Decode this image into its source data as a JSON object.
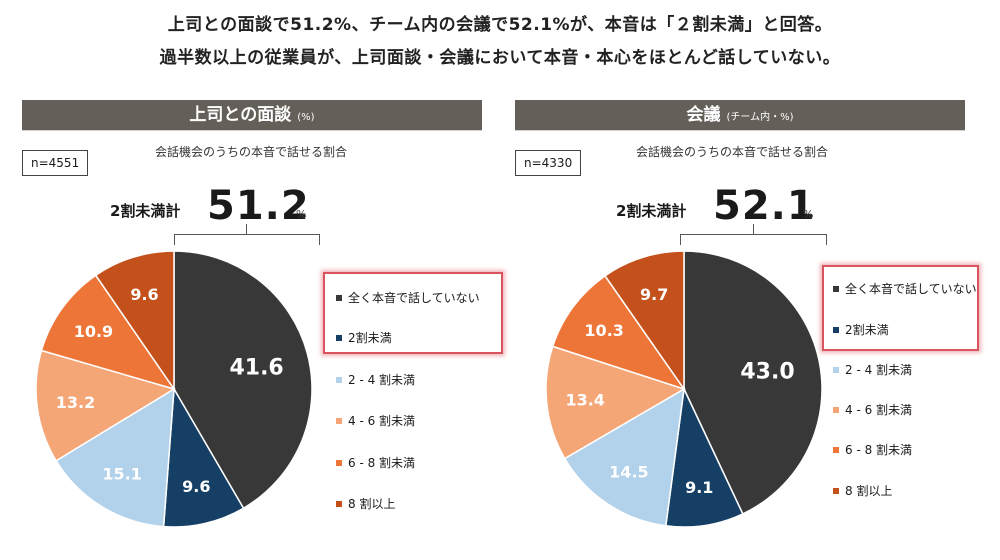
{
  "headline": {
    "line1": "上司との面談で51.2%、チーム内の会議で52.1%が、本音は「２割未満」と回答。",
    "line2": "過半数以上の従業員が、上司面談・会議において本音・本心をほとんど話していない。"
  },
  "panels": [
    {
      "title": "上司との面談",
      "unit": "(%)",
      "n": "n=4551",
      "subtitle": "会話機会のうちの本音で話せる割合",
      "total_label": "2割未満計",
      "total_value": "51.2",
      "total_unit": "%"
    },
    {
      "title": "会議",
      "unit": "(チーム内・%)",
      "n": "n=4330",
      "subtitle": "会話機会のうちの本音で話せる割合",
      "total_label": "2割未満計",
      "total_value": "52.1",
      "total_unit": "%"
    }
  ],
  "legend": [
    {
      "label": "全く本音で話していない",
      "color": "#383838"
    },
    {
      "label": "2割未満",
      "color": "#163f66"
    },
    {
      "label": "2 - 4 割未満",
      "color": "#b2d1ea"
    },
    {
      "label": "4 - 6 割未満",
      "color": "#f4a677"
    },
    {
      "label": "6 - 8 割未満",
      "color": "#ee7538"
    },
    {
      "label": "8 割以上",
      "color": "#c4511c"
    }
  ],
  "chart_data": [
    {
      "type": "pie",
      "title": "上司との面談 (%)",
      "subtitle": "会話機会のうちの本音で話せる割合",
      "n": 4551,
      "categories": [
        "全く本音で話していない",
        "2割未満",
        "2-4割未満",
        "4-6割未満",
        "6-8割未満",
        "8割以上"
      ],
      "values": [
        41.6,
        9.6,
        15.1,
        13.2,
        10.9,
        9.6
      ],
      "colors": [
        "#383838",
        "#163f66",
        "#b2d1ea",
        "#f4a677",
        "#ee7538",
        "#c4511c"
      ],
      "annotation": "2割未満計 51.2%",
      "legend_position": "right",
      "start_angle": "12 o'clock, clockwise"
    },
    {
      "type": "pie",
      "title": "会議 (チーム内・%)",
      "subtitle": "会話機会のうちの本音で話せる割合",
      "n": 4330,
      "categories": [
        "全く本音で話していない",
        "2割未満",
        "2-4割未満",
        "4-6割未満",
        "6-8割未満",
        "8割以上"
      ],
      "values": [
        43.0,
        9.1,
        14.5,
        13.4,
        10.3,
        9.7
      ],
      "colors": [
        "#383838",
        "#163f66",
        "#b2d1ea",
        "#f4a677",
        "#ee7538",
        "#c4511c"
      ],
      "annotation": "2割未満計 52.1%",
      "legend_position": "right",
      "start_angle": "12 o'clock, clockwise"
    }
  ]
}
